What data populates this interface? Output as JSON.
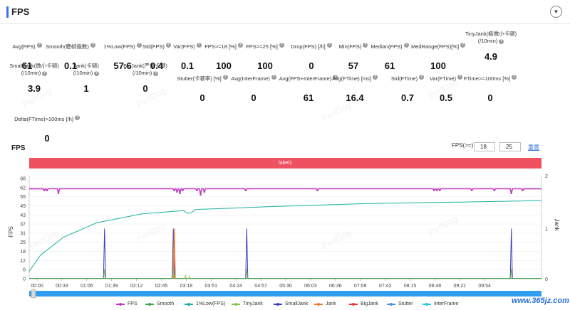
{
  "header": {
    "title": "FPS",
    "collapse_icon": "chevron-down-icon"
  },
  "metrics": [
    {
      "label": "Avg(FPS)",
      "value": "61"
    },
    {
      "label": "Smooth(稳帧指数)",
      "value": "0.1"
    },
    {
      "label": "1%Low(FPS)",
      "value": "57.6"
    },
    {
      "label": "Std(FPS)",
      "value": "0.4"
    },
    {
      "label": "Var(FPS)",
      "value": "0.1"
    },
    {
      "label": "FPS>=18 [%]",
      "value": "100"
    },
    {
      "label": "FPS>=25 [%]",
      "value": "100"
    },
    {
      "label": "Drop(FPS) [/h]",
      "value": "0"
    },
    {
      "label": "Min(FPS)",
      "value": "57"
    },
    {
      "label": "Median(FPS)",
      "value": "61"
    },
    {
      "label": "MedRange(FPS)[%]",
      "value": "100"
    },
    {
      "label": "TinyJank(极微小卡顿)",
      "label2": "(/10min)",
      "value": "4.9"
    },
    {
      "label": "SmallJank(微小卡顿)",
      "label2": "(/10min)",
      "value": "3.9"
    },
    {
      "label": "Jank(卡顿)",
      "label2": "(/10min)",
      "value": "1"
    },
    {
      "label": "BigJank(严重卡顿)",
      "label2": "(/10min)",
      "value": "0"
    },
    {
      "label": "Stutter(卡顿率) [%]",
      "value": "0"
    },
    {
      "label": "Avg(InterFrame)",
      "value": "0"
    },
    {
      "label": "Avg(FPS+InterFrame)",
      "value": "61"
    },
    {
      "label": "Avg(FTime) [ms]",
      "value": "16.4"
    },
    {
      "label": "Std(FTime)",
      "value": "0.7"
    },
    {
      "label": "Var(FTime)",
      "value": "0.5"
    },
    {
      "label": "FTime>=100ms [%]",
      "value": "0"
    },
    {
      "label": "Delta(FTime)>100ms [/h]",
      "value": "0"
    }
  ],
  "watermark": "PerfDog",
  "fps_section": {
    "title": "FPS",
    "threshold_label": "FPS(>=)",
    "threshold_1": "18",
    "threshold_2": "25",
    "reset_label": "重置",
    "label_bar": "label1"
  },
  "chart_data": {
    "type": "line",
    "ylabel_left": "FPS",
    "ylabel_right": "Jank",
    "y_ticks_left": [
      "68",
      "62",
      "55",
      "49",
      "43",
      "37",
      "31",
      "25",
      "18",
      "12",
      "6",
      "0"
    ],
    "y_ticks_right": [
      "2",
      "1",
      "0"
    ],
    "x_ticks": [
      "00:00",
      "00:33",
      "01:06",
      "01:39",
      "02:12",
      "02:45",
      "03:18",
      "03:51",
      "04:24",
      "04:57",
      "05:30",
      "06:03",
      "06:36",
      "07:09",
      "07:42",
      "08:15",
      "08:48",
      "09:21",
      "09:54"
    ],
    "ylim_left": [
      0,
      68
    ],
    "ylim_right": [
      0,
      2
    ],
    "legend": [
      "FPS",
      "Smooth",
      "1%Low(FPS)",
      "TinyJank",
      "SmallJank",
      "Jank",
      "BigJank",
      "Stutter",
      "InterFrame"
    ],
    "colors": {
      "FPS": "#c13cc1",
      "Smooth": "#3ca84a",
      "1%Low(FPS)": "#1ab0a0",
      "TinyJank": "#8bc34a",
      "SmallJank": "#3f3fbf",
      "Jank": "#f07a2a",
      "BigJank": "#e53935",
      "Stutter": "#4a90e2",
      "InterFrame": "#27c8e0"
    },
    "series": [
      {
        "name": "FPS",
        "baseline": 61,
        "dips": [
          [
            80,
            60
          ],
          [
            95,
            60
          ],
          [
            155,
            58
          ],
          [
            770,
            60
          ],
          [
            785,
            59
          ],
          [
            800,
            58
          ],
          [
            815,
            60
          ],
          [
            890,
            60
          ],
          [
            910,
            57
          ],
          [
            930,
            59
          ],
          [
            1150,
            60
          ],
          [
            1530,
            60
          ],
          [
            2150,
            60
          ],
          [
            2165,
            60
          ],
          [
            2180,
            60
          ],
          [
            2350,
            60
          ],
          [
            2470,
            60
          ],
          [
            2560,
            58
          ],
          [
            2620,
            60
          ]
        ]
      },
      {
        "name": "1%Low(FPS)",
        "curve": [
          [
            0,
            5
          ],
          [
            60,
            16
          ],
          [
            180,
            28
          ],
          [
            360,
            38
          ],
          [
            600,
            44
          ],
          [
            900,
            47
          ],
          [
            1300,
            49
          ],
          [
            1800,
            51
          ],
          [
            2300,
            52
          ],
          [
            2720,
            53
          ]
        ]
      },
      {
        "name": "SmallJank",
        "spikes": [
          [
            400,
            0.2
          ],
          [
            765,
            0.2
          ],
          [
            1155,
            0.2
          ],
          [
            2560,
            0.2
          ]
        ]
      },
      {
        "name": "Jank",
        "spikes": [
          [
            400,
            1
          ],
          [
            765,
            1
          ],
          [
            1155,
            1
          ],
          [
            2560,
            1
          ]
        ]
      },
      {
        "name": "TinyJank",
        "spikes": [
          [
            770,
            0.05
          ],
          [
            830,
            0.07
          ],
          [
            850,
            0.05
          ]
        ]
      }
    ],
    "x_range_seconds": [
      0,
      620
    ]
  },
  "footer": {
    "site": "www.365jz.com"
  }
}
